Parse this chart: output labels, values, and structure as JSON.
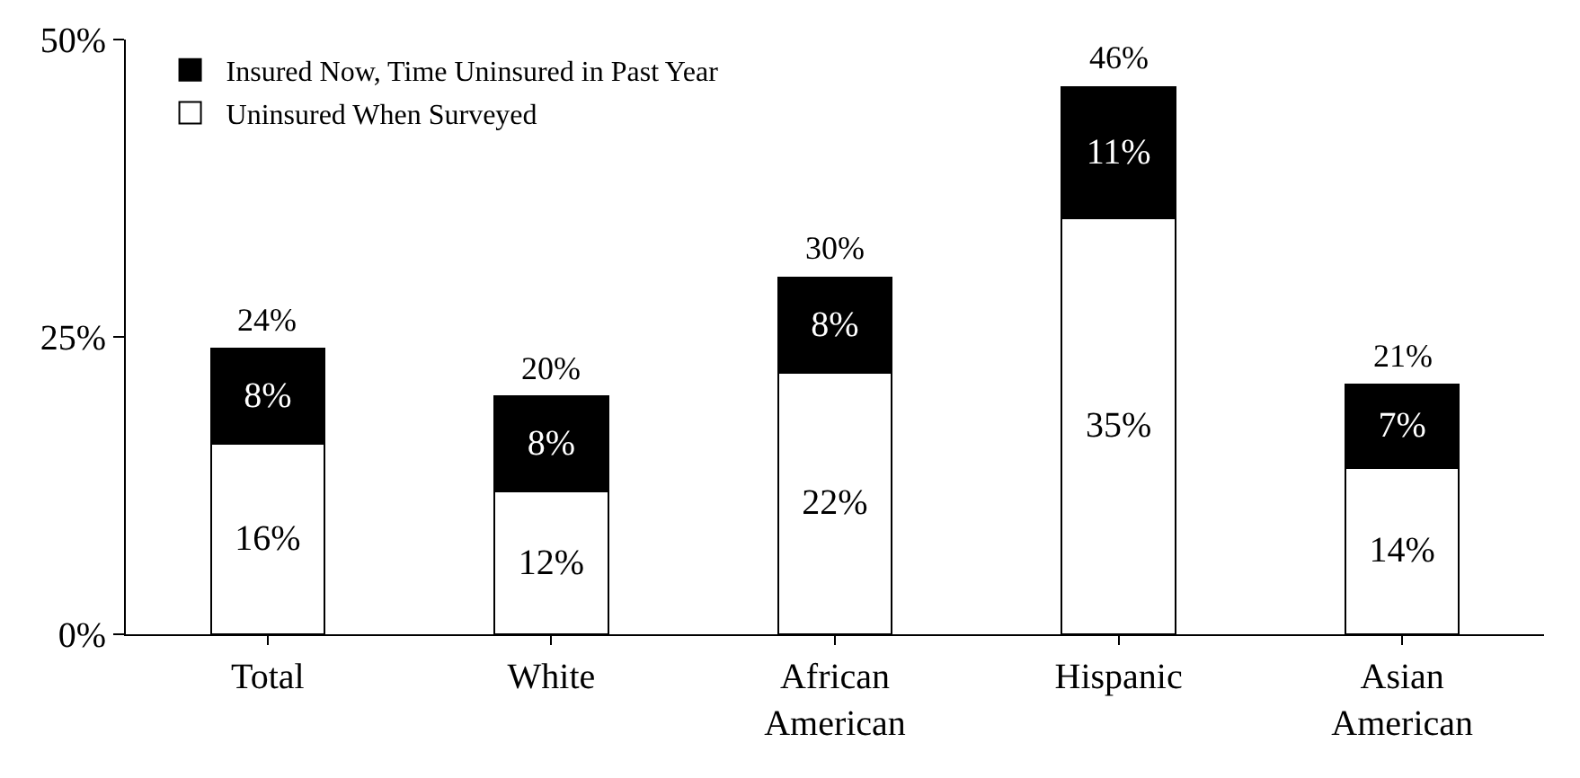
{
  "chart_data": {
    "type": "bar",
    "stacked": true,
    "categories": [
      "Total",
      "White",
      "African American",
      "Hispanic",
      "Asian American"
    ],
    "series": [
      {
        "name": "Uninsured When Surveyed",
        "color": "#ffffff",
        "values": [
          16,
          12,
          22,
          35,
          14
        ],
        "value_labels": [
          "16%",
          "12%",
          "22%",
          "35%",
          "14%"
        ]
      },
      {
        "name": "Insured Now, Time Uninsured in Past Year",
        "color": "#000000",
        "values": [
          8,
          8,
          8,
          11,
          7
        ],
        "value_labels": [
          "8%",
          "8%",
          "8%",
          "11%",
          "7%"
        ]
      }
    ],
    "totals": [
      "24%",
      "20%",
      "30%",
      "46%",
      "21%"
    ],
    "ylim": [
      0,
      50
    ],
    "yticks": [
      {
        "value": 0,
        "label": "0%"
      },
      {
        "value": 25,
        "label": "25%"
      },
      {
        "value": 50,
        "label": "50%"
      }
    ],
    "grid": false,
    "legend": "top left"
  }
}
